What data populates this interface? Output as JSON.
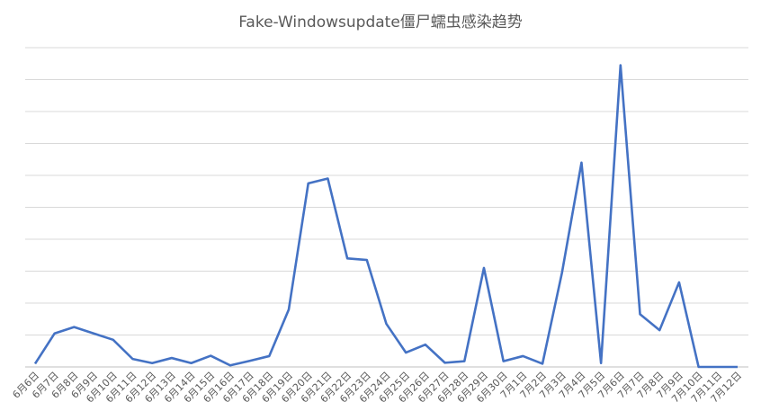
{
  "chart_data": {
    "type": "line",
    "title": "Fake-Windowsupdate僵尸蠕虫感染趋势",
    "xlabel": "",
    "ylabel": "",
    "y_axis_labels_shown": false,
    "grid": "horizontal",
    "ylim": [
      0,
      100
    ],
    "line_color": "#4472c4",
    "categories": [
      "6月6日",
      "6月7日",
      "6月8日",
      "6月9日",
      "6月10日",
      "6月11日",
      "6月12日",
      "6月13日",
      "6月14日",
      "6月15日",
      "6月16日",
      "6月17日",
      "6月18日",
      "6月19日",
      "6月20日",
      "6月21日",
      "6月22日",
      "6月23日",
      "6月24日",
      "6月25日",
      "6月26日",
      "6月27日",
      "6月28日",
      "6月29日",
      "6月30日",
      "7月1日",
      "7月2日",
      "7月3日",
      "7月4日",
      "7月5日",
      "7月6日",
      "7月7日",
      "7月8日",
      "7月9日",
      "7月10日",
      "7月11日",
      "7月12日"
    ],
    "series": [
      {
        "values": [
          1,
          10.5,
          12.5,
          10.5,
          8.5,
          2.5,
          1.2,
          2.8,
          1.2,
          3.5,
          0.5,
          1.9,
          3.4,
          18.0,
          57.5,
          59.0,
          34.0,
          33.5,
          13.5,
          4.5,
          7.0,
          1.3,
          1.8,
          31.0,
          1.8,
          3.4,
          1.0,
          29.5,
          64.0,
          1.2,
          94.5,
          16.5,
          11.5,
          26.5,
          0,
          0,
          0
        ]
      }
    ]
  }
}
